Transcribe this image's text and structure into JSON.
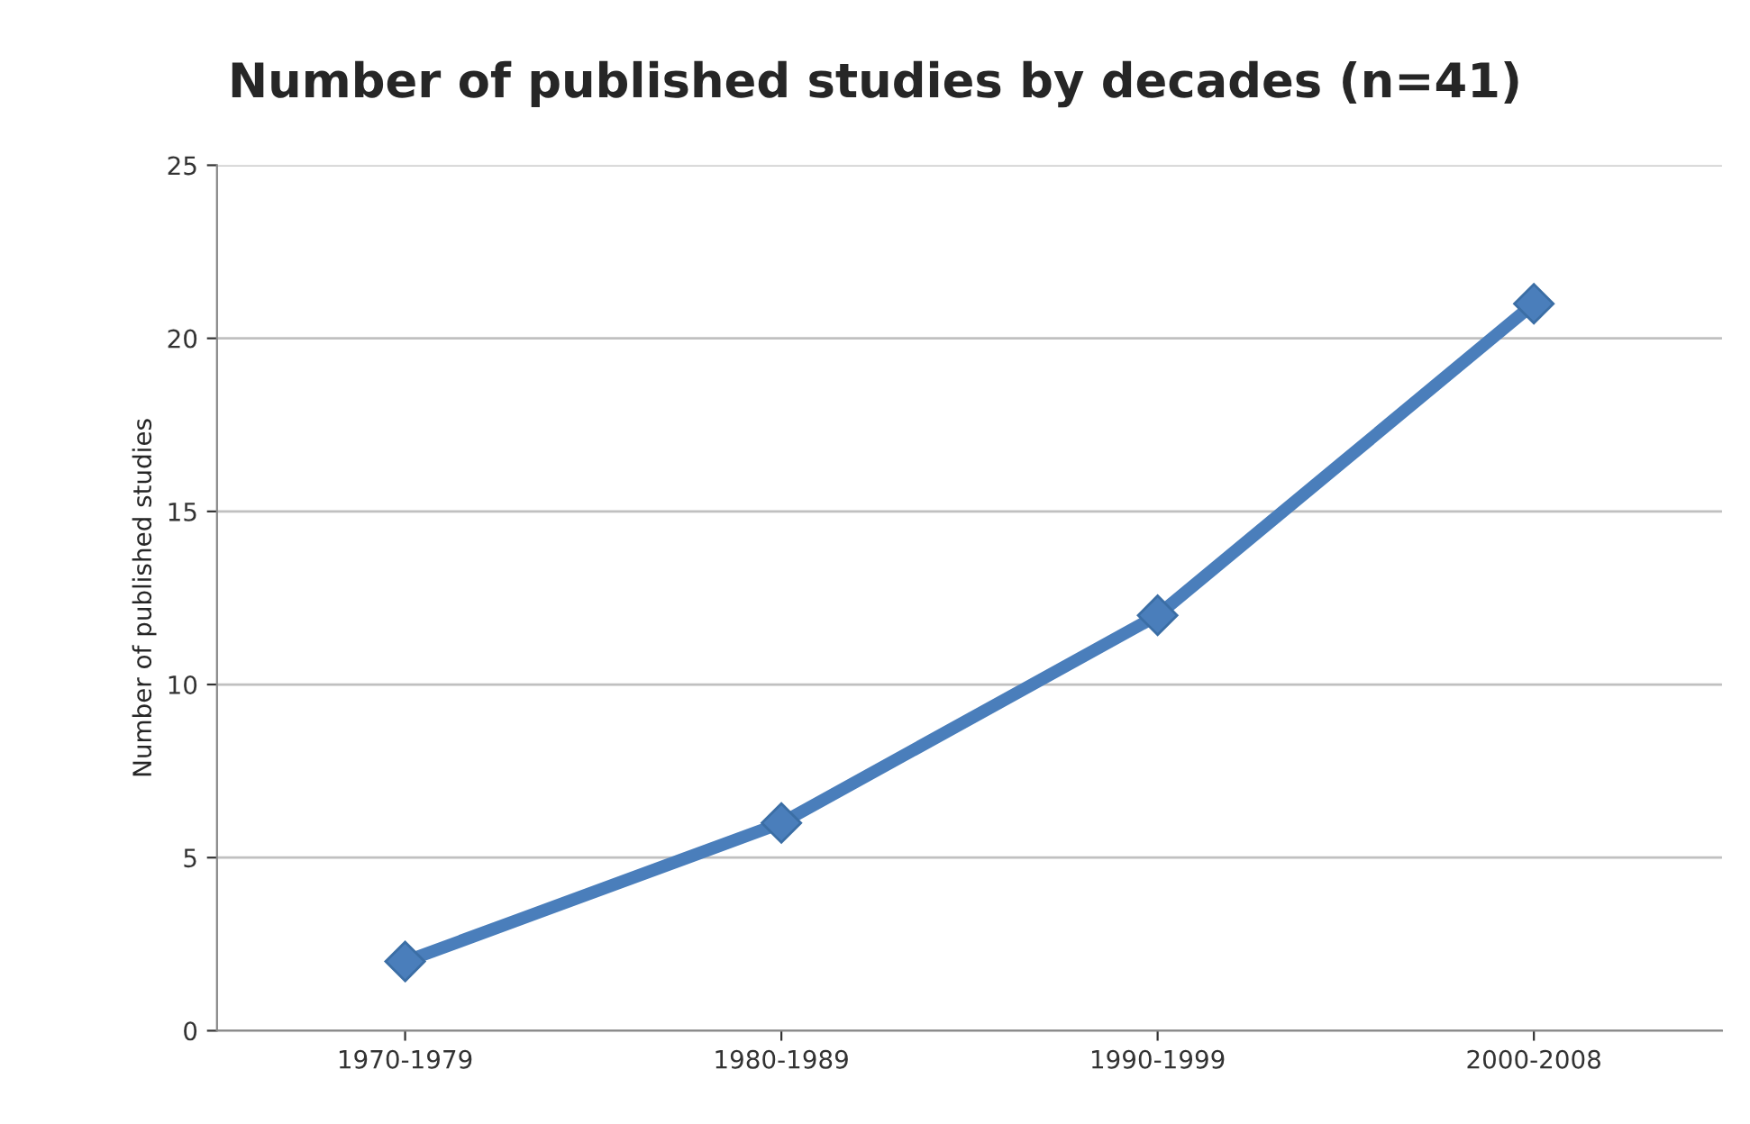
{
  "chart_data": {
    "type": "line",
    "title": "Number of published studies by decades (n=41)",
    "ylabel": "Number of published studies",
    "categories": [
      "1970-1979",
      "1980-1989",
      "1990-1999",
      "2000-2008"
    ],
    "series": [
      {
        "color": "#4a7ebb",
        "values": [
          2,
          6,
          12,
          21
        ]
      }
    ],
    "ylim": [
      0,
      25
    ],
    "yticks": [
      0,
      5,
      10,
      15,
      20,
      25
    ],
    "grid": "y",
    "marker": "diamond",
    "line_style": "solid"
  }
}
